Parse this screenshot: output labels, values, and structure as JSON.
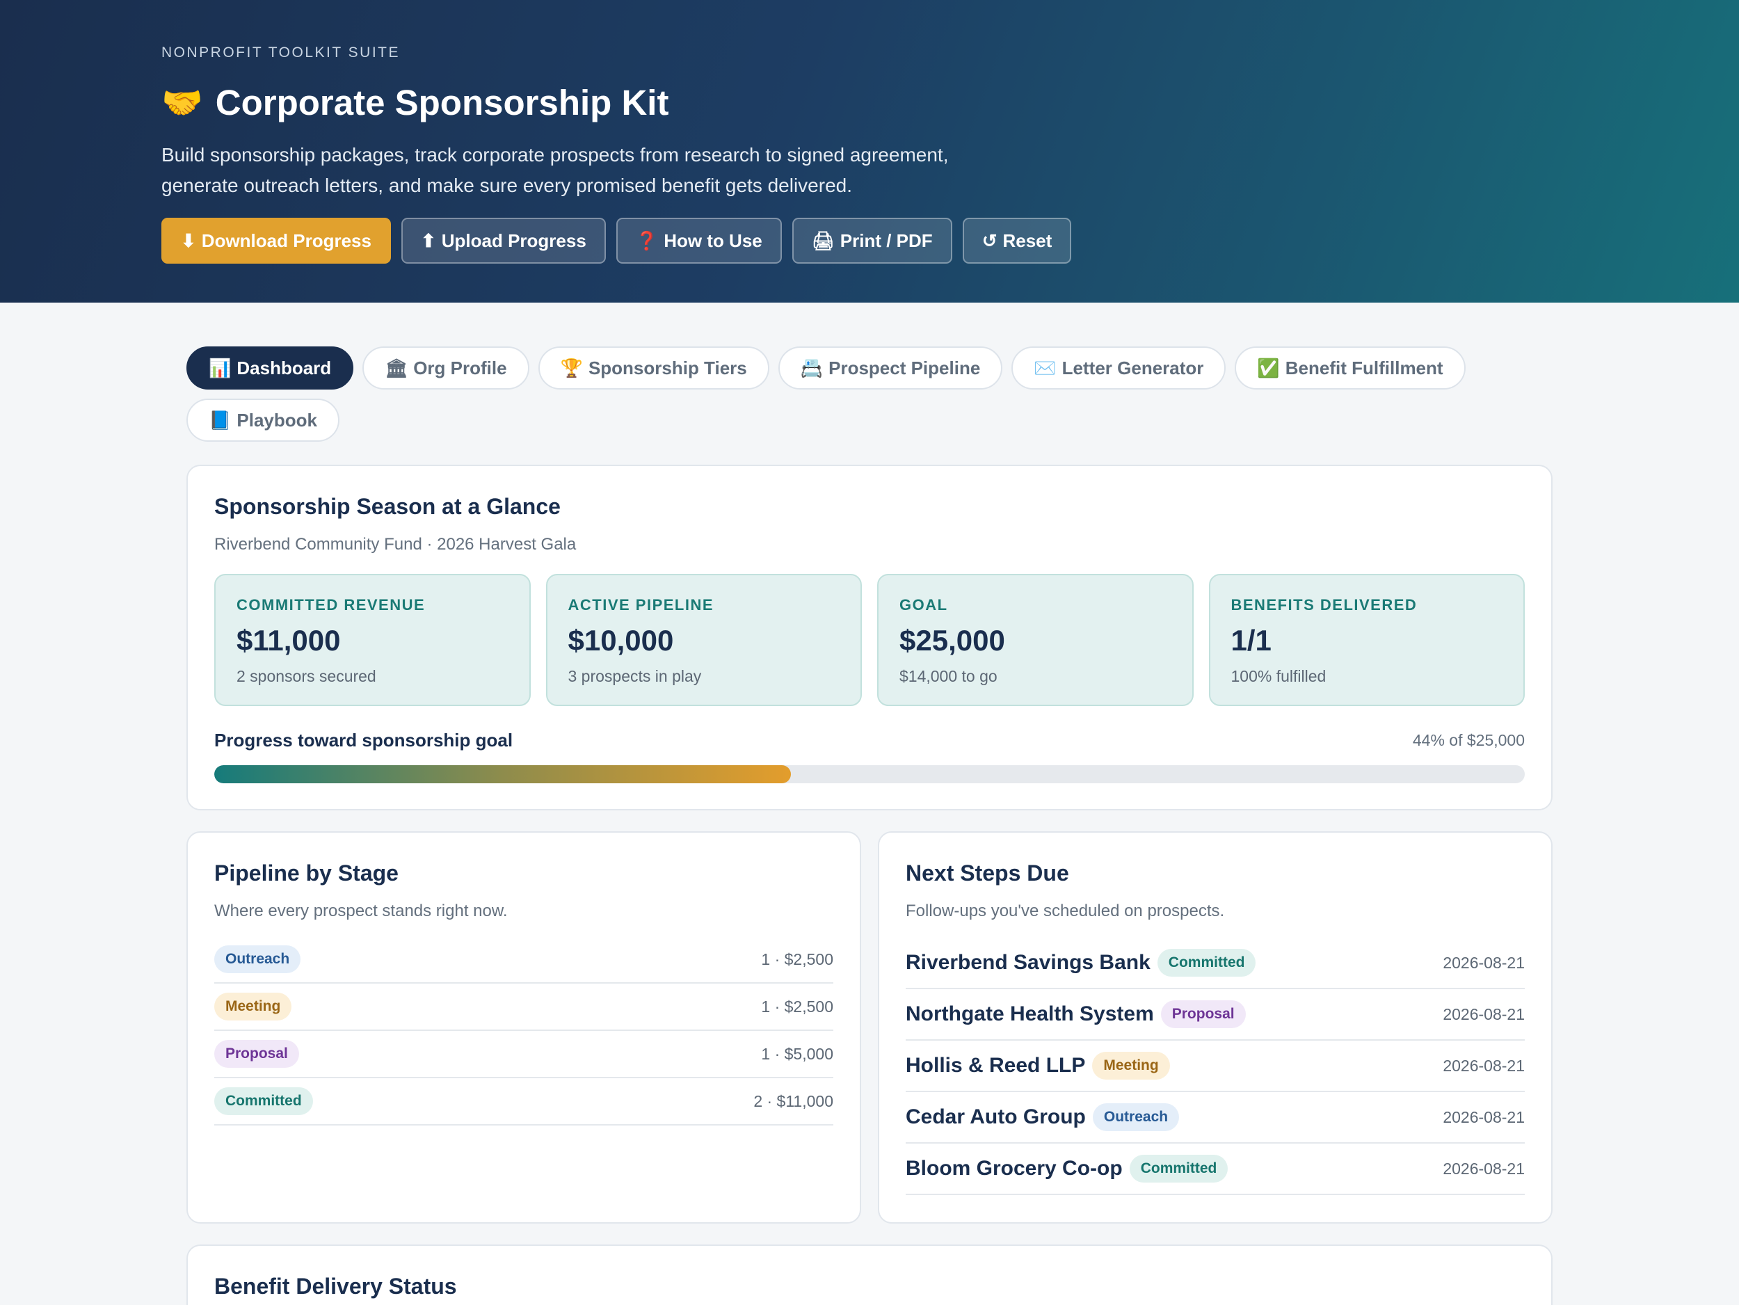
{
  "header": {
    "suite": "NONPROFIT TOOLKIT SUITE",
    "title_icon": "🤝",
    "title": "Corporate Sponsorship Kit",
    "description": "Build sponsorship packages, track corporate prospects from research to signed agreement, generate outreach letters, and make sure every promised benefit gets delivered.",
    "buttons": [
      {
        "icon": "⬇",
        "label": "Download Progress"
      },
      {
        "icon": "⬆",
        "label": "Upload Progress"
      },
      {
        "icon": "❓",
        "label": "How to Use"
      },
      {
        "icon": "🖨",
        "label": "Print / PDF"
      },
      {
        "icon": "↺",
        "label": "Reset"
      }
    ]
  },
  "tabs": [
    {
      "icon": "📊",
      "label": "Dashboard",
      "active": true
    },
    {
      "icon": "🏛",
      "label": "Org Profile"
    },
    {
      "icon": "🏆",
      "label": "Sponsorship Tiers"
    },
    {
      "icon": "📇",
      "label": "Prospect Pipeline"
    },
    {
      "icon": "✉️",
      "label": "Letter Generator"
    },
    {
      "icon": "✅",
      "label": "Benefit Fulfillment"
    },
    {
      "icon": "📘",
      "label": "Playbook"
    }
  ],
  "glance": {
    "title": "Sponsorship Season at a Glance",
    "subtitle": "Riverbend Community Fund · 2026 Harvest Gala",
    "kpis": [
      {
        "label": "COMMITTED REVENUE",
        "value": "$11,000",
        "note": "2 sponsors secured"
      },
      {
        "label": "ACTIVE PIPELINE",
        "value": "$10,000",
        "note": "3 prospects in play"
      },
      {
        "label": "GOAL",
        "value": "$25,000",
        "note": "$14,000 to go"
      },
      {
        "label": "BENEFITS DELIVERED",
        "value": "1/1",
        "note": "100% fulfilled"
      }
    ],
    "progress_label": "Progress toward sponsorship goal",
    "progress_text": "44% of $25,000",
    "progress_fraction": 0.44
  },
  "pipeline": {
    "title": "Pipeline by Stage",
    "subtitle": "Where every prospect stands right now.",
    "stages": [
      {
        "stage": "Outreach",
        "key": "outreach",
        "count": "1 · $2,500"
      },
      {
        "stage": "Meeting",
        "key": "meeting",
        "count": "1 · $2,500"
      },
      {
        "stage": "Proposal",
        "key": "proposal",
        "count": "1 · $5,000"
      },
      {
        "stage": "Committed",
        "key": "committed",
        "count": "2 · $11,000"
      }
    ]
  },
  "next_steps": {
    "title": "Next Steps Due",
    "subtitle": "Follow-ups you've scheduled on prospects.",
    "items": [
      {
        "name": "Riverbend Savings Bank",
        "stage": "Committed",
        "key": "committed",
        "date": "2026-08-21"
      },
      {
        "name": "Northgate Health System",
        "stage": "Proposal",
        "key": "proposal",
        "date": "2026-08-21"
      },
      {
        "name": "Hollis & Reed LLP",
        "stage": "Meeting",
        "key": "meeting",
        "date": "2026-08-21"
      },
      {
        "name": "Cedar Auto Group",
        "stage": "Outreach",
        "key": "outreach",
        "date": "2026-08-21"
      },
      {
        "name": "Bloom Grocery Co-op",
        "stage": "Committed",
        "key": "committed",
        "date": "2026-08-21"
      }
    ]
  },
  "benefit_status": {
    "title": "Benefit Delivery Status"
  },
  "colors": {
    "navy": "#1a2e4e",
    "accent": "#e1a12e",
    "teal": "#167b7b"
  }
}
